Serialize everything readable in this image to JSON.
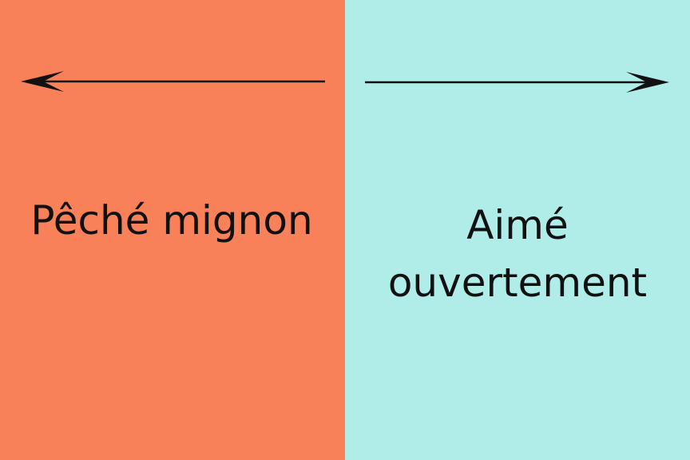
{
  "colors": {
    "left_background": "#F88159",
    "right_background": "#B0EDE9",
    "arrow": "#111111",
    "text": "#111111"
  },
  "left_panel": {
    "label": "Pêché mignon",
    "arrow_icon": "arrow-left-icon"
  },
  "right_panel": {
    "label_line_1": "Aimé",
    "label_line_2": "ouvertement",
    "arrow_icon": "arrow-right-icon"
  }
}
